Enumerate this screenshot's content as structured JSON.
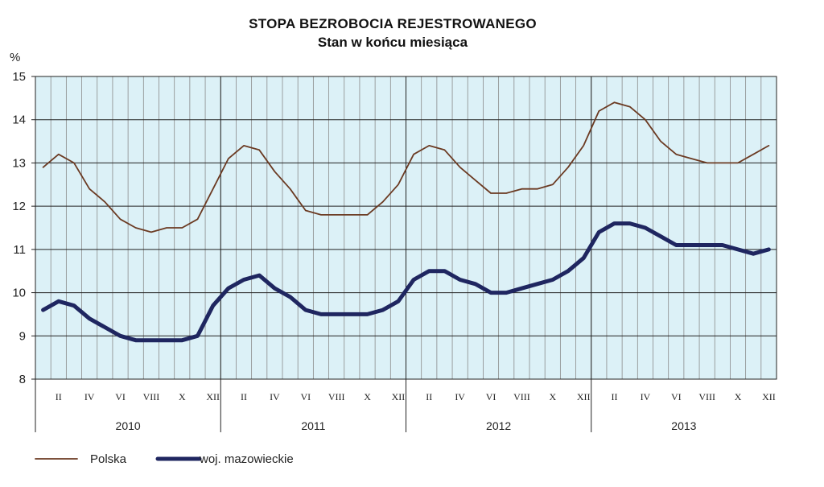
{
  "chart_data": {
    "type": "line",
    "title": "STOPA  BEZROBOCIA  REJESTROWANEGO",
    "subtitle": "Stan  w  końcu  miesiąca",
    "ylabel": "%",
    "ylim": [
      8,
      15
    ],
    "yticks": [
      "8",
      "9",
      "10",
      "11",
      "12",
      "13",
      "14",
      "15"
    ],
    "grid": true,
    "years": [
      "2010",
      "2011",
      "2012",
      "2013"
    ],
    "month_ticks": [
      "II",
      "IV",
      "VI",
      "VIII",
      "X",
      "XII"
    ],
    "series": [
      {
        "name": "Polska",
        "color": "#6b3a22",
        "values": [
          12.9,
          13.2,
          13.0,
          12.4,
          12.1,
          11.7,
          11.5,
          11.4,
          11.5,
          11.5,
          11.7,
          12.4,
          13.1,
          13.4,
          13.3,
          12.8,
          12.4,
          11.9,
          11.8,
          11.8,
          11.8,
          11.8,
          12.1,
          12.5,
          13.2,
          13.4,
          13.3,
          12.9,
          12.6,
          12.3,
          12.3,
          12.4,
          12.4,
          12.5,
          12.9,
          13.4,
          14.2,
          14.4,
          14.3,
          14.0,
          13.5,
          13.2,
          13.1,
          13.0,
          13.0,
          13.0,
          13.2,
          13.4
        ]
      },
      {
        "name": "woj. mazowieckie",
        "color": "#1f2660",
        "values": [
          9.6,
          9.8,
          9.7,
          9.4,
          9.2,
          9.0,
          8.9,
          8.9,
          8.9,
          8.9,
          9.0,
          9.7,
          10.1,
          10.3,
          10.4,
          10.1,
          9.9,
          9.6,
          9.5,
          9.5,
          9.5,
          9.5,
          9.6,
          9.8,
          10.3,
          10.5,
          10.5,
          10.3,
          10.2,
          10.0,
          10.0,
          10.1,
          10.2,
          10.3,
          10.5,
          10.8,
          11.4,
          11.6,
          11.6,
          11.5,
          11.3,
          11.1,
          11.1,
          11.1,
          11.1,
          11.0,
          10.9,
          11.0
        ]
      }
    ],
    "legend": "bottom-left"
  }
}
